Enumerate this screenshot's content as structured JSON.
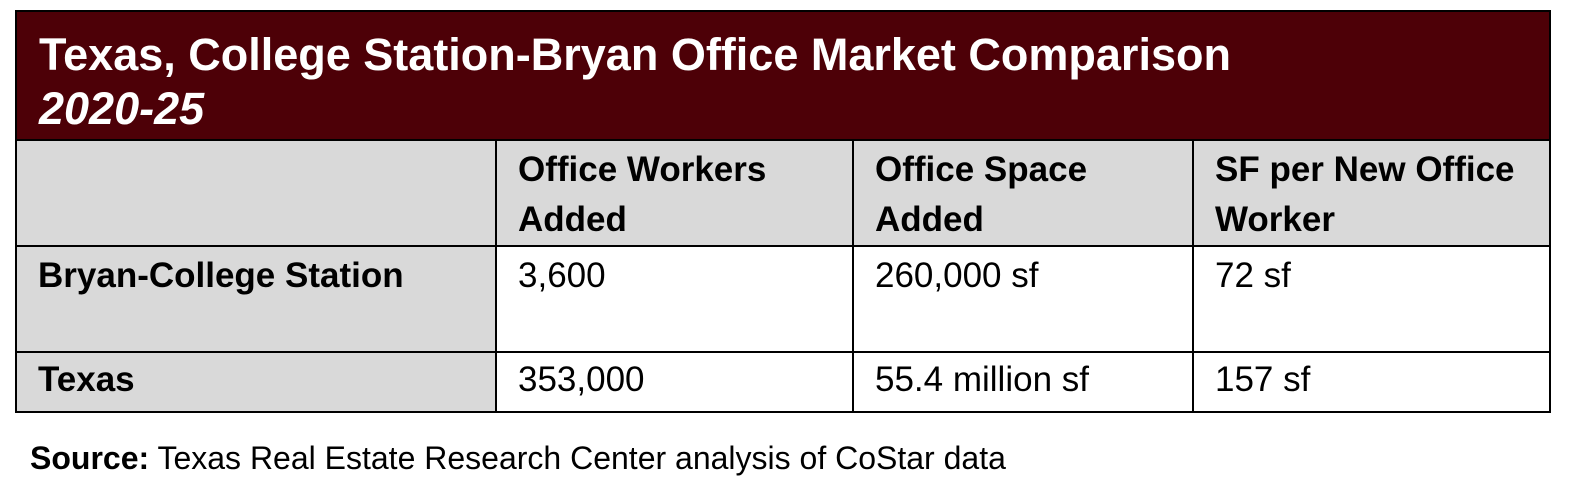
{
  "title": {
    "main": "Texas, College Station-Bryan Office Market Comparison",
    "sub": "2020-25"
  },
  "table": {
    "headers": [
      "",
      "Office Workers Added",
      "Office Space Added",
      "SF per New Office Worker"
    ],
    "rows": [
      {
        "label": "Bryan-College Station",
        "workers": "3,600",
        "space": "260,000 sf",
        "sf_per_worker": "72 sf"
      },
      {
        "label": "Texas",
        "workers": "353,000",
        "space": "55.4 million sf",
        "sf_per_worker": "157 sf"
      }
    ]
  },
  "source": {
    "label": "Source:",
    "text": " Texas Real Estate Research Center analysis of CoStar data"
  },
  "colors": {
    "title_bg": "#4d0007",
    "title_text": "#ffffff",
    "header_bg": "#d9d9d9"
  }
}
